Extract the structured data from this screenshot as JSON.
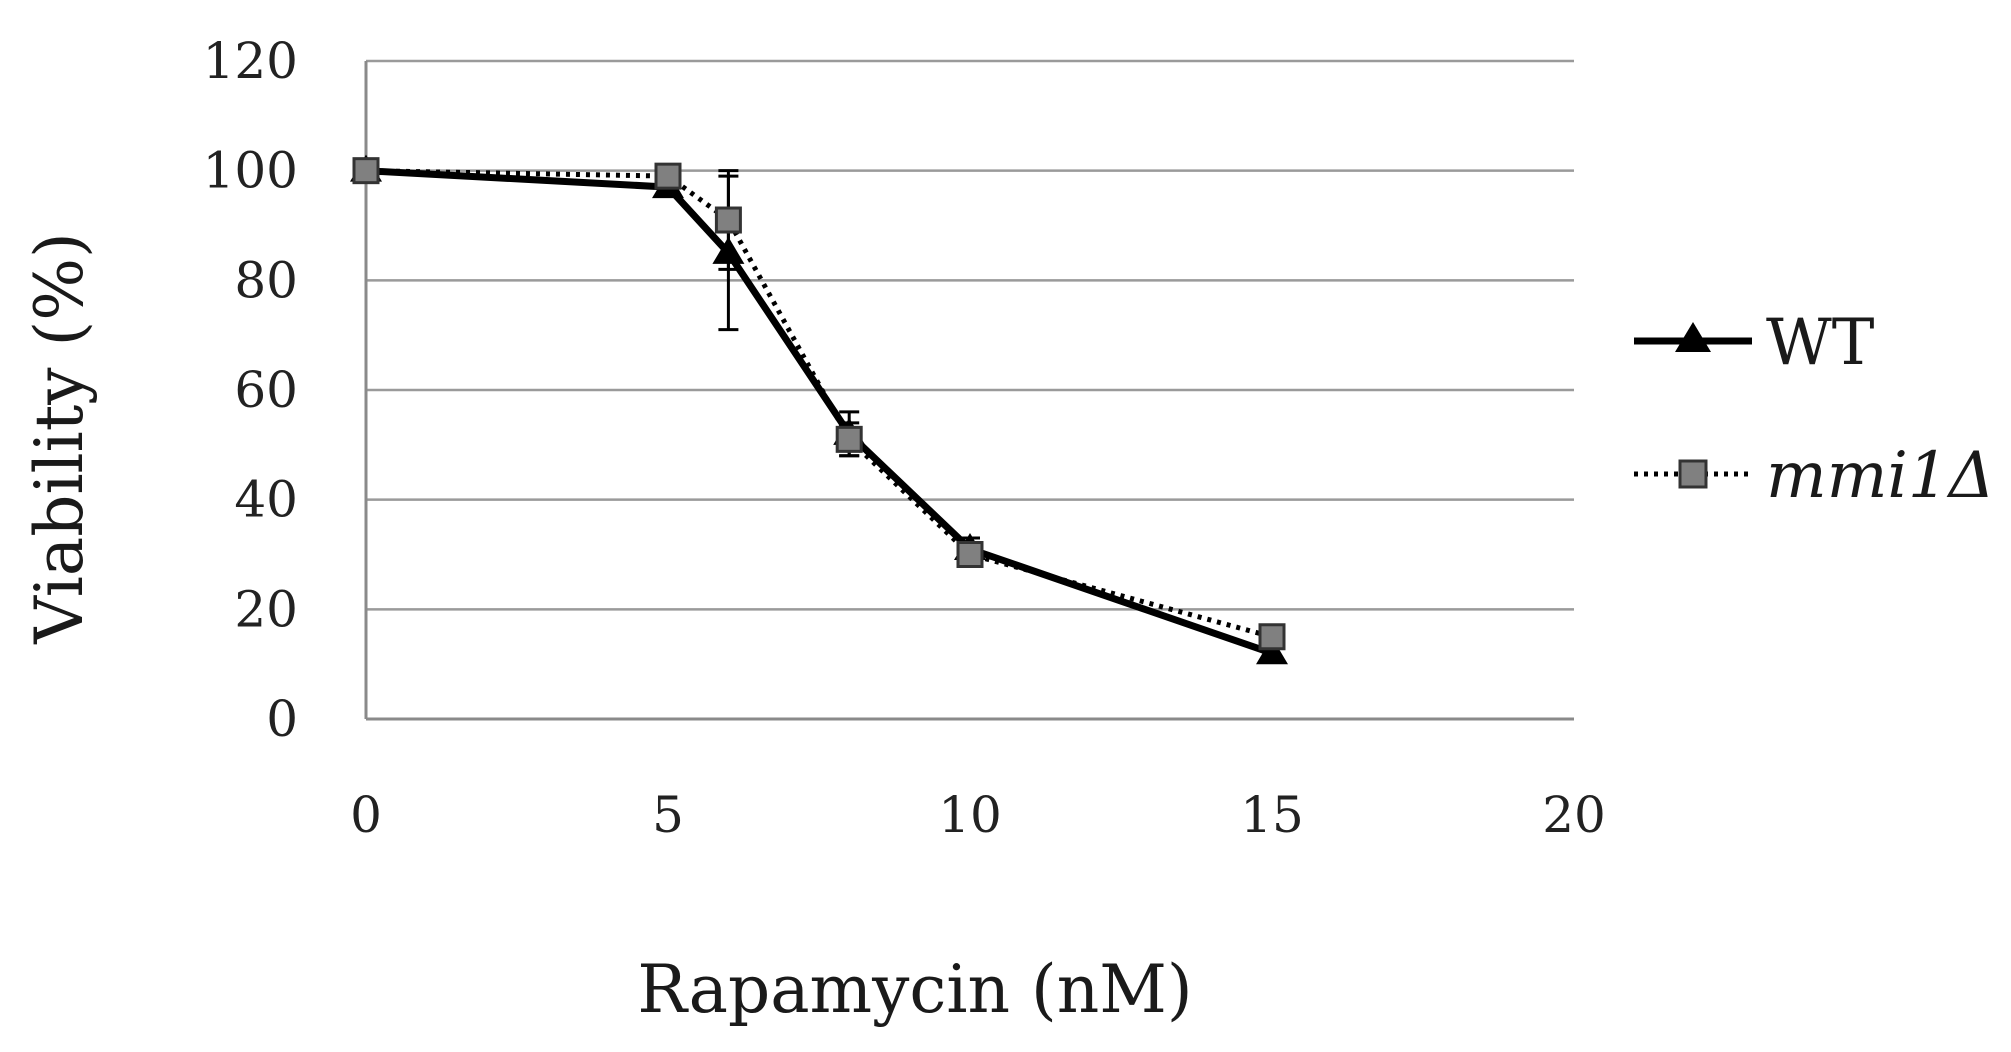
{
  "chart_data": {
    "type": "line",
    "title": "",
    "xlabel": "Rapamycin (nM)",
    "ylabel": "Viability (%)",
    "xlim": [
      0,
      20
    ],
    "ylim": [
      0,
      120
    ],
    "x_ticks": [
      "0",
      "5",
      "10",
      "15",
      "20"
    ],
    "y_ticks": [
      "0",
      "20",
      "40",
      "60",
      "80",
      "100",
      "120"
    ],
    "grid": "horizontal",
    "legend_position": "right",
    "series": [
      {
        "name": "WT",
        "marker": "triangle",
        "line_style": "solid",
        "color": "#000000",
        "x": [
          0,
          5,
          6,
          8,
          10,
          15
        ],
        "y": [
          100,
          97,
          85,
          52,
          31,
          12
        ],
        "error": [
          0,
          1,
          14,
          4,
          2,
          1
        ]
      },
      {
        "name": "mmi1Δ",
        "marker": "square",
        "line_style": "dotted",
        "color": "#808080",
        "x": [
          0,
          5,
          6,
          8,
          10,
          15
        ],
        "y": [
          100,
          99,
          91,
          51,
          30,
          15
        ],
        "error": [
          0,
          1,
          9,
          3,
          2,
          1
        ]
      }
    ]
  }
}
